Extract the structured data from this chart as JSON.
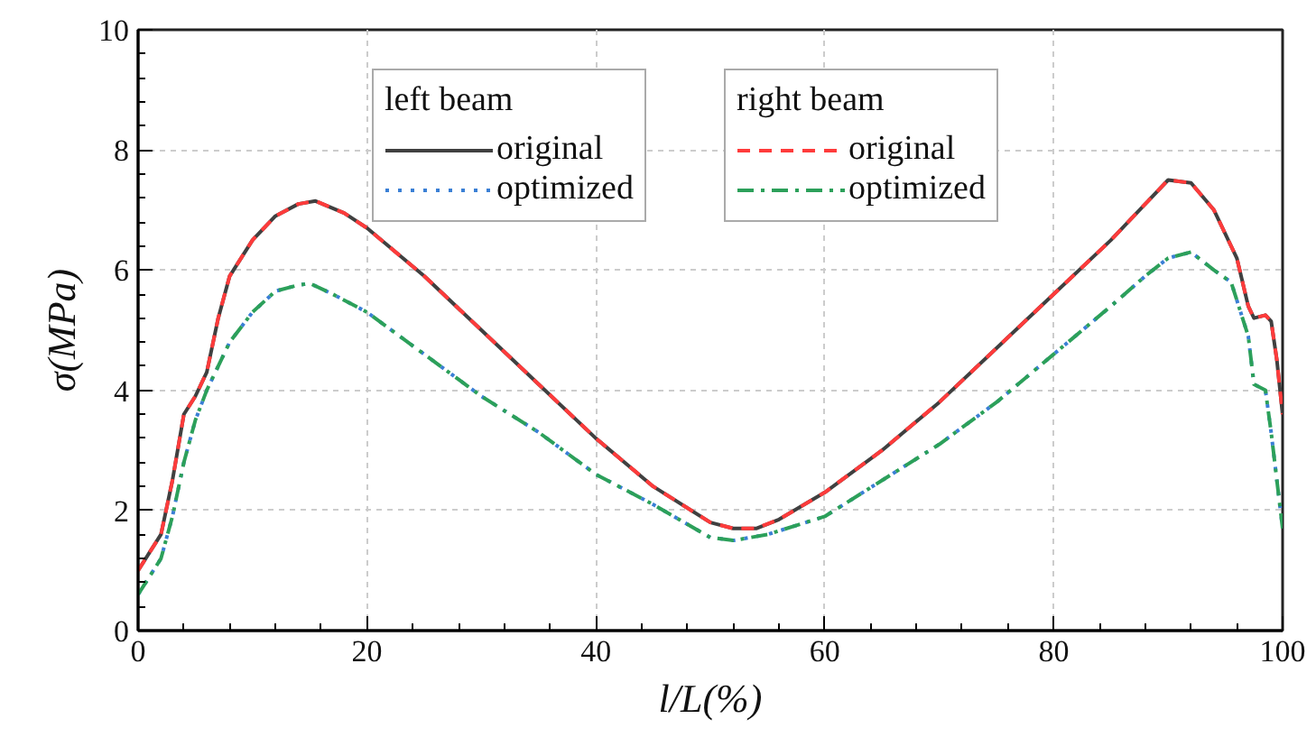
{
  "chart_data": {
    "type": "line",
    "xlabel": "l/L(%)",
    "ylabel": "σ(MPa)",
    "xlim": [
      0,
      100
    ],
    "ylim": [
      0,
      10
    ],
    "xticks": [
      0,
      20,
      40,
      60,
      80,
      100
    ],
    "yticks": [
      0,
      2,
      4,
      6,
      8,
      10
    ],
    "grid": true,
    "legend": "top",
    "annotations": [
      "left beam",
      "right beam"
    ],
    "series": [
      {
        "name": "original",
        "color": "#404040",
        "line_style": "solid",
        "x": [
          0,
          1,
          2,
          3,
          4,
          5,
          6,
          7,
          8,
          10,
          12,
          14,
          15.5,
          18,
          20,
          25,
          30,
          35,
          40,
          45,
          50,
          52,
          54,
          56,
          60,
          65,
          70,
          75,
          80,
          85,
          88,
          90,
          92,
          94,
          96,
          97,
          97.5,
          98.5,
          99,
          99.5,
          100
        ],
        "values": [
          1.0,
          1.3,
          1.6,
          2.5,
          3.6,
          3.9,
          4.3,
          5.2,
          5.9,
          6.5,
          6.9,
          7.1,
          7.15,
          6.95,
          6.7,
          5.9,
          5.0,
          4.1,
          3.2,
          2.4,
          1.8,
          1.7,
          1.7,
          1.85,
          2.3,
          3.0,
          3.8,
          4.7,
          5.6,
          6.5,
          7.1,
          7.5,
          7.45,
          7.0,
          6.2,
          5.4,
          5.2,
          5.25,
          5.15,
          4.5,
          3.6
        ]
      },
      {
        "name": "optimized",
        "color": "#3a7fd5",
        "line_style": "dotted",
        "x": [
          0,
          1,
          2,
          3,
          4,
          5,
          6,
          8,
          10,
          12,
          14,
          15,
          17,
          20,
          25,
          30,
          35,
          40,
          45,
          50,
          52,
          55,
          60,
          65,
          70,
          75,
          80,
          85,
          88,
          90,
          92,
          94,
          95.5,
          97,
          97.5,
          98.5,
          99,
          99.5,
          100
        ],
        "values": [
          0.6,
          0.9,
          1.2,
          1.9,
          2.8,
          3.5,
          4.0,
          4.8,
          5.3,
          5.65,
          5.75,
          5.78,
          5.6,
          5.3,
          4.6,
          3.9,
          3.3,
          2.6,
          2.1,
          1.55,
          1.5,
          1.6,
          1.9,
          2.5,
          3.1,
          3.8,
          4.6,
          5.4,
          5.9,
          6.2,
          6.3,
          6.0,
          5.8,
          4.9,
          4.1,
          4.0,
          3.3,
          2.5,
          1.7
        ]
      },
      {
        "name": "original",
        "color": "#ff3b3b",
        "line_style": "dashed",
        "x": [
          0,
          1,
          2,
          3,
          4,
          5,
          6,
          7,
          8,
          10,
          12,
          14,
          15.5,
          18,
          20,
          25,
          30,
          35,
          40,
          45,
          50,
          52,
          54,
          56,
          60,
          65,
          70,
          75,
          80,
          85,
          88,
          90,
          92,
          94,
          96,
          97,
          97.5,
          98.5,
          99,
          99.5,
          100
        ],
        "values": [
          1.0,
          1.3,
          1.6,
          2.5,
          3.6,
          3.9,
          4.3,
          5.2,
          5.9,
          6.5,
          6.9,
          7.1,
          7.15,
          6.95,
          6.7,
          5.9,
          5.0,
          4.1,
          3.2,
          2.4,
          1.8,
          1.7,
          1.7,
          1.85,
          2.3,
          3.0,
          3.8,
          4.7,
          5.6,
          6.5,
          7.1,
          7.5,
          7.45,
          7.0,
          6.2,
          5.4,
          5.2,
          5.25,
          5.15,
          4.5,
          3.6
        ]
      },
      {
        "name": "optimized",
        "color": "#2ca05a",
        "line_style": "dashdot",
        "x": [
          0,
          1,
          2,
          3,
          4,
          5,
          6,
          8,
          10,
          12,
          14,
          15,
          17,
          20,
          25,
          30,
          35,
          40,
          45,
          50,
          52,
          55,
          60,
          65,
          70,
          75,
          80,
          85,
          88,
          90,
          92,
          94,
          95.5,
          97,
          97.5,
          98.5,
          99,
          99.5,
          100
        ],
        "values": [
          0.6,
          0.9,
          1.2,
          1.9,
          2.8,
          3.5,
          4.0,
          4.8,
          5.3,
          5.65,
          5.75,
          5.78,
          5.6,
          5.3,
          4.6,
          3.9,
          3.3,
          2.6,
          2.1,
          1.55,
          1.5,
          1.6,
          1.9,
          2.5,
          3.1,
          3.8,
          4.6,
          5.4,
          5.9,
          6.2,
          6.3,
          6.0,
          5.8,
          4.9,
          4.1,
          4.0,
          3.3,
          2.5,
          1.7
        ]
      }
    ]
  }
}
